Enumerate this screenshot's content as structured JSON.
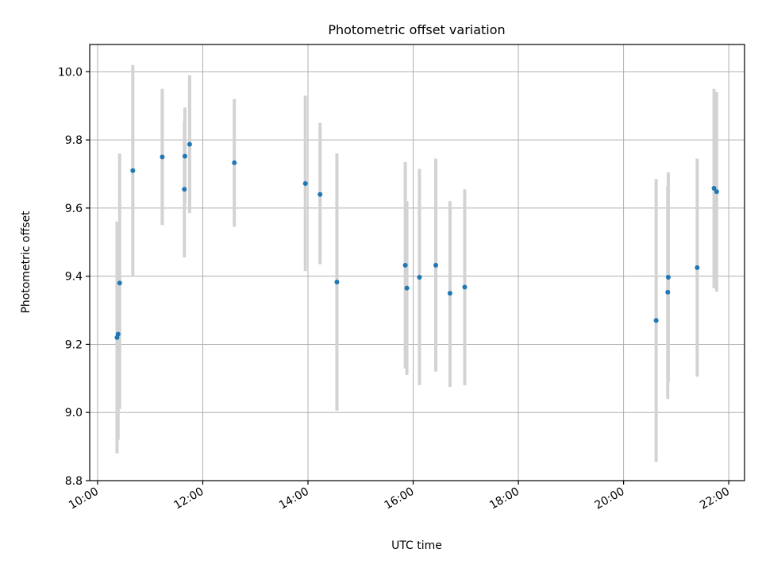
{
  "chart_data": {
    "type": "scatter",
    "title": "Photometric offset variation",
    "xlabel": "UTC time",
    "ylabel": "Photometric offset",
    "x_unit": "hours UTC",
    "xlim": [
      9.85,
      22.3
    ],
    "ylim": [
      8.8,
      10.08
    ],
    "xticks": [
      10,
      12,
      14,
      16,
      18,
      20,
      22
    ],
    "xtick_labels": [
      "10:00",
      "12:00",
      "14:00",
      "16:00",
      "18:00",
      "20:00",
      "22:00"
    ],
    "yticks": [
      8.8,
      9.0,
      9.2,
      9.4,
      9.6,
      9.8,
      10.0
    ],
    "ytick_labels": [
      "8.8",
      "9.0",
      "9.2",
      "9.4",
      "9.6",
      "9.8",
      "10.0"
    ],
    "grid": true,
    "marker_color": "#1f77b4",
    "errorbar_color": "#d3d3d3",
    "points": [
      {
        "x": 10.37,
        "y": 9.22,
        "yerr_low": 8.88,
        "yerr_high": 9.56
      },
      {
        "x": 10.39,
        "y": 9.23,
        "yerr_low": 8.92,
        "yerr_high": 9.54
      },
      {
        "x": 10.42,
        "y": 9.38,
        "yerr_low": 9.01,
        "yerr_high": 9.76
      },
      {
        "x": 10.67,
        "y": 9.71,
        "yerr_low": 9.4,
        "yerr_high": 10.02
      },
      {
        "x": 11.23,
        "y": 9.75,
        "yerr_low": 9.55,
        "yerr_high": 9.95
      },
      {
        "x": 11.65,
        "y": 9.655,
        "yerr_low": 9.455,
        "yerr_high": 9.855
      },
      {
        "x": 11.66,
        "y": 9.752,
        "yerr_low": 9.61,
        "yerr_high": 9.895
      },
      {
        "x": 11.75,
        "y": 9.787,
        "yerr_low": 9.585,
        "yerr_high": 9.99
      },
      {
        "x": 12.6,
        "y": 9.733,
        "yerr_low": 9.545,
        "yerr_high": 9.92
      },
      {
        "x": 13.95,
        "y": 9.672,
        "yerr_low": 9.415,
        "yerr_high": 9.93
      },
      {
        "x": 14.23,
        "y": 9.64,
        "yerr_low": 9.435,
        "yerr_high": 9.85
      },
      {
        "x": 14.55,
        "y": 9.383,
        "yerr_low": 9.005,
        "yerr_high": 9.76
      },
      {
        "x": 15.85,
        "y": 9.432,
        "yerr_low": 9.13,
        "yerr_high": 9.735
      },
      {
        "x": 15.88,
        "y": 9.365,
        "yerr_low": 9.11,
        "yerr_high": 9.62
      },
      {
        "x": 16.12,
        "y": 9.397,
        "yerr_low": 9.08,
        "yerr_high": 9.715
      },
      {
        "x": 16.43,
        "y": 9.432,
        "yerr_low": 9.12,
        "yerr_high": 9.745
      },
      {
        "x": 16.7,
        "y": 9.35,
        "yerr_low": 9.075,
        "yerr_high": 9.62
      },
      {
        "x": 16.98,
        "y": 9.368,
        "yerr_low": 9.08,
        "yerr_high": 9.655
      },
      {
        "x": 20.62,
        "y": 9.27,
        "yerr_low": 8.855,
        "yerr_high": 9.685
      },
      {
        "x": 20.84,
        "y": 9.353,
        "yerr_low": 9.04,
        "yerr_high": 9.665
      },
      {
        "x": 20.85,
        "y": 9.397,
        "yerr_low": 9.09,
        "yerr_high": 9.705
      },
      {
        "x": 21.4,
        "y": 9.425,
        "yerr_low": 9.105,
        "yerr_high": 9.745
      },
      {
        "x": 21.72,
        "y": 9.658,
        "yerr_low": 9.365,
        "yerr_high": 9.95
      },
      {
        "x": 21.77,
        "y": 9.648,
        "yerr_low": 9.355,
        "yerr_high": 9.94
      }
    ]
  }
}
